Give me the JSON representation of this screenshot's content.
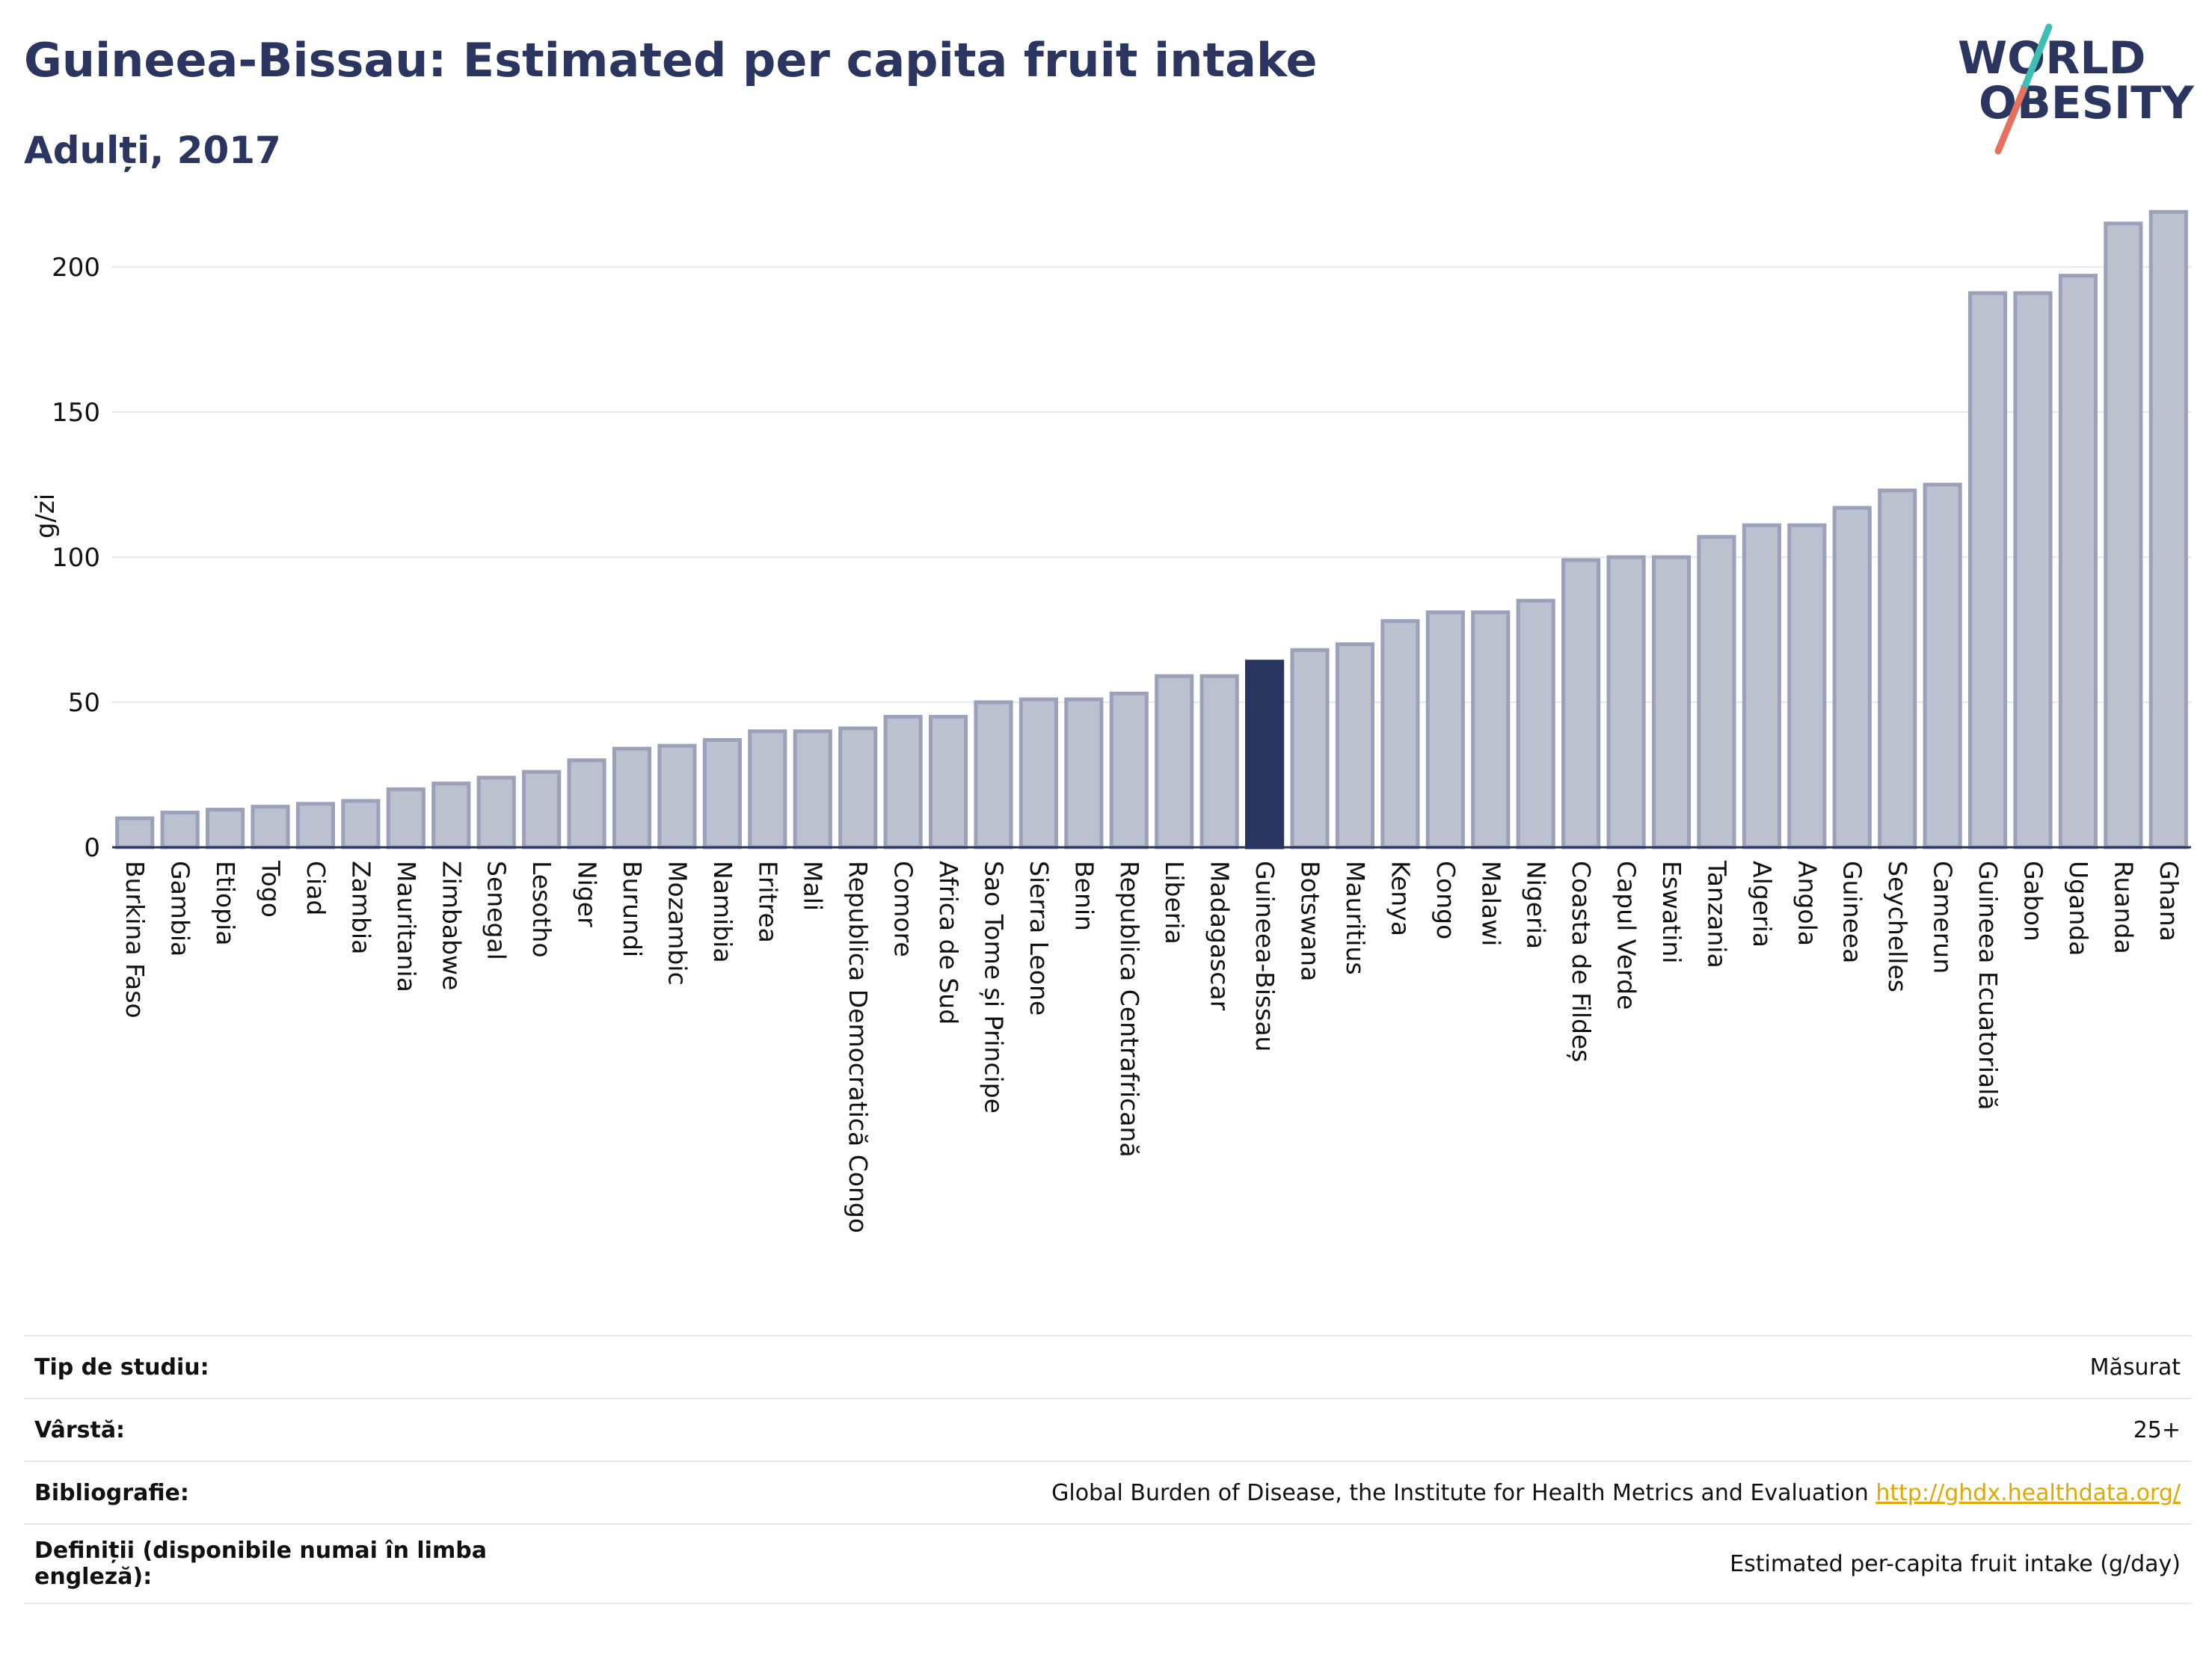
{
  "header": {
    "title": "Guineea-Bissau: Estimated per capita fruit intake",
    "subtitle": "Adulți, 2017"
  },
  "logo": {
    "line1": "WORLD",
    "line2": "OBESITY",
    "icon": "world-obesity-logo"
  },
  "colors": {
    "bar": "#bcc1d0",
    "bar_border": "#9aa1b8",
    "highlight": "#2a3560",
    "grid": "#e6e8ef",
    "text": "#2a3560"
  },
  "chart_data": {
    "type": "bar",
    "ylabel": "g/zi",
    "ylim": [
      0,
      225
    ],
    "yticks": [
      0,
      50,
      100,
      150,
      200
    ],
    "highlight": "Guineea-Bissau",
    "categories": [
      "Burkina Faso",
      "Gambia",
      "Etiopia",
      "Togo",
      "Ciad",
      "Zambia",
      "Mauritania",
      "Zimbabwe",
      "Senegal",
      "Lesotho",
      "Niger",
      "Burundi",
      "Mozambic",
      "Namibia",
      "Eritrea",
      "Mali",
      "Republica Democratică Congo",
      "Comore",
      "Africa de Sud",
      "Sao Tome și Principe",
      "Sierra Leone",
      "Benin",
      "Republica Centrafricană",
      "Liberia",
      "Madagascar",
      "Guineea-Bissau",
      "Botswana",
      "Mauritius",
      "Kenya",
      "Congo",
      "Malawi",
      "Nigeria",
      "Coasta de Fildeș",
      "Capul Verde",
      "Eswatini",
      "Tanzania",
      "Algeria",
      "Angola",
      "Guineea",
      "Seychelles",
      "Camerun",
      "Guineea Ecuatorială",
      "Gabon",
      "Uganda",
      "Ruanda",
      "Ghana"
    ],
    "values": [
      10,
      12,
      13,
      14,
      15,
      16,
      20,
      22,
      24,
      26,
      30,
      34,
      35,
      37,
      40,
      40,
      41,
      45,
      45,
      50,
      51,
      51,
      53,
      59,
      59,
      64,
      68,
      70,
      78,
      81,
      81,
      85,
      99,
      100,
      100,
      107,
      111,
      111,
      117,
      123,
      125,
      191,
      191,
      197,
      215,
      219
    ]
  },
  "info": {
    "rows": [
      {
        "label": "Tip de studiu:",
        "value": "Măsurat"
      },
      {
        "label": "Vârstă:",
        "value": "25+"
      },
      {
        "label": "Bibliografie:",
        "value": "Global Burden of Disease, the Institute for Health Metrics and Evaluation",
        "link": "http://ghdx.healthdata.org/"
      },
      {
        "label": "Definiții (disponibile numai în limba engleză):",
        "value": "Estimated per-capita fruit intake (g/day)"
      }
    ]
  }
}
